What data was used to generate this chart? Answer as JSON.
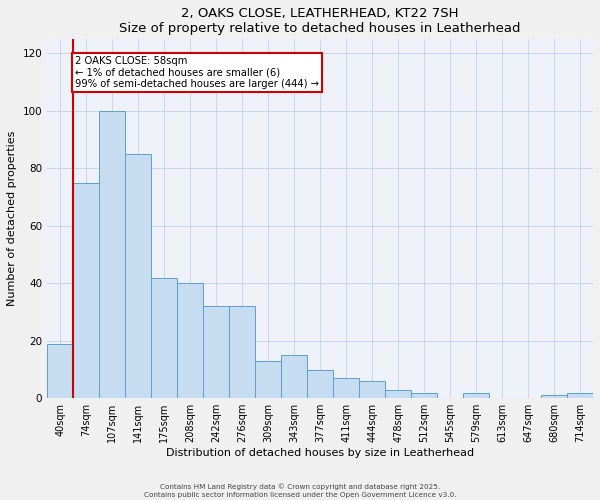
{
  "title": "2, OAKS CLOSE, LEATHERHEAD, KT22 7SH",
  "subtitle": "Size of property relative to detached houses in Leatherhead",
  "xlabel": "Distribution of detached houses by size in Leatherhead",
  "ylabel": "Number of detached properties",
  "bar_labels": [
    "40sqm",
    "74sqm",
    "107sqm",
    "141sqm",
    "175sqm",
    "208sqm",
    "242sqm",
    "276sqm",
    "309sqm",
    "343sqm",
    "377sqm",
    "411sqm",
    "444sqm",
    "478sqm",
    "512sqm",
    "545sqm",
    "579sqm",
    "613sqm",
    "647sqm",
    "680sqm",
    "714sqm"
  ],
  "bar_values": [
    19,
    75,
    100,
    85,
    42,
    40,
    32,
    32,
    13,
    15,
    10,
    7,
    6,
    3,
    2,
    0,
    2,
    0,
    0,
    1,
    2
  ],
  "bar_color": "#c6dcf0",
  "bar_edge_color": "#5a9fd4",
  "marker_label": "2 OAKS CLOSE: 58sqm",
  "annotation_line1": "← 1% of detached houses are smaller (6)",
  "annotation_line2": "99% of semi-detached houses are larger (444) →",
  "ylim": [
    0,
    125
  ],
  "yticks": [
    0,
    20,
    40,
    60,
    80,
    100,
    120
  ],
  "footer1": "Contains HM Land Registry data © Crown copyright and database right 2025.",
  "footer2": "Contains public sector information licensed under the Open Government Licence v3.0.",
  "bg_color": "#f0f0f0",
  "plot_bg_color": "#eef2f8",
  "grid_color": "#c8d4e8",
  "annotation_box_edge_color": "#cc0000",
  "marker_line_color": "#cc0000"
}
